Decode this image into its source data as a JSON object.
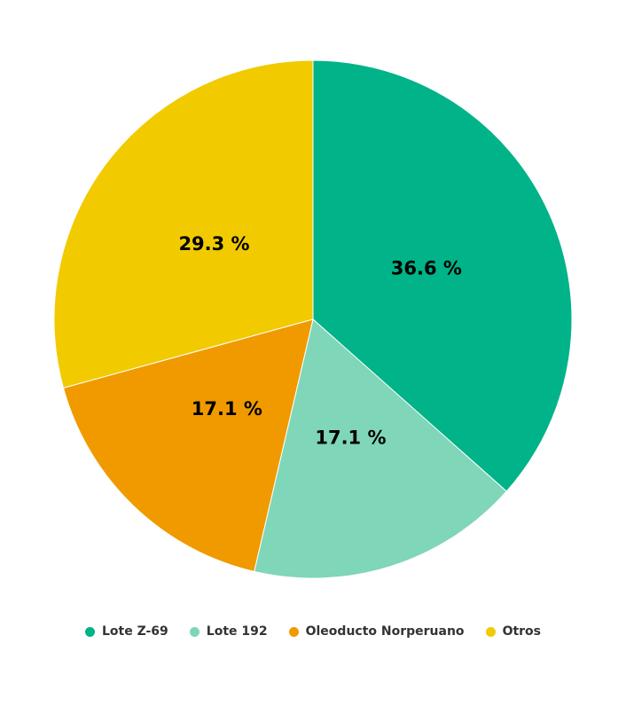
{
  "chart_data": {
    "type": "pie",
    "categories": [
      "Lote Z-69",
      "Lote 192",
      "Oleoducto Norperuano",
      "Otros"
    ],
    "values": [
      36.6,
      17.1,
      17.1,
      29.3
    ],
    "labels": [
      "36.6 %",
      "17.1 %",
      "17.1 %",
      "29.3 %"
    ],
    "colors": [
      "#00b388",
      "#7fd6b9",
      "#f09a00",
      "#f2ca00"
    ],
    "start_angle": "top",
    "direction": "clockwise",
    "legend": "bottom"
  }
}
